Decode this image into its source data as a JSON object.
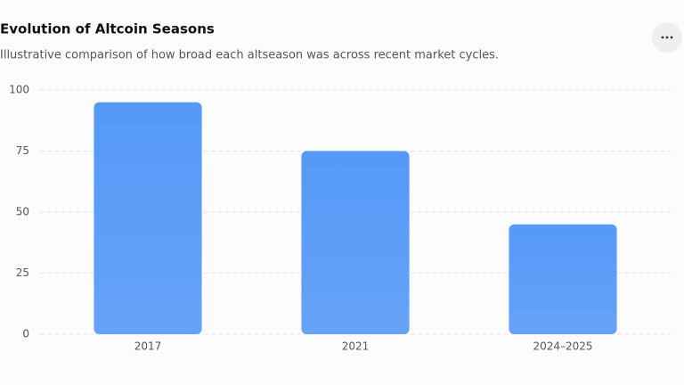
{
  "chart_data": {
    "type": "bar",
    "title": "Evolution of Altcoin Seasons",
    "subtitle": "Illustrative comparison of how broad each altseason was across recent market cycles.",
    "categories": [
      "2017",
      "2021",
      "2024–2025"
    ],
    "values": [
      95,
      75,
      45
    ],
    "color": "#5599f7",
    "ylim": [
      0,
      100
    ],
    "yticks": [
      0,
      25,
      50,
      75,
      100
    ],
    "grid": true
  }
}
